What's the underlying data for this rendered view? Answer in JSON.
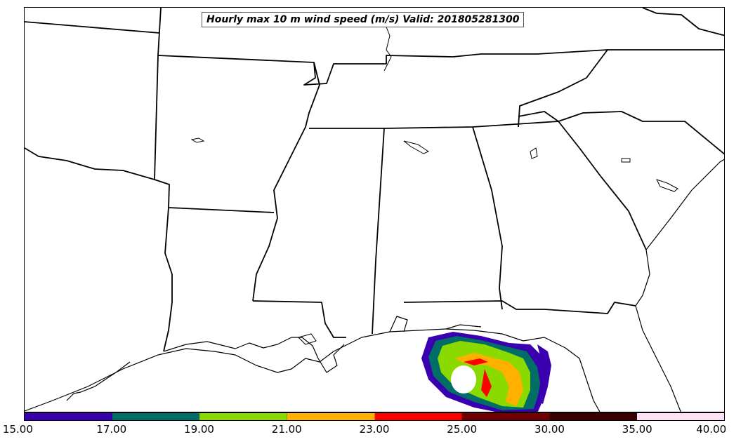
{
  "title": "Hourly max 10 m wind speed (m/s) Valid: 201805281300",
  "colorbar": {
    "ticks": [
      "15.00",
      "17.00",
      "19.00",
      "21.00",
      "23.00",
      "25.00",
      "30.00",
      "35.00",
      "40.00"
    ],
    "colors": [
      "#3a00b0",
      "#006e66",
      "#8ada00",
      "#ffb000",
      "#ff0000",
      "#700000",
      "#3a0000",
      "#ffe0f6"
    ]
  }
}
